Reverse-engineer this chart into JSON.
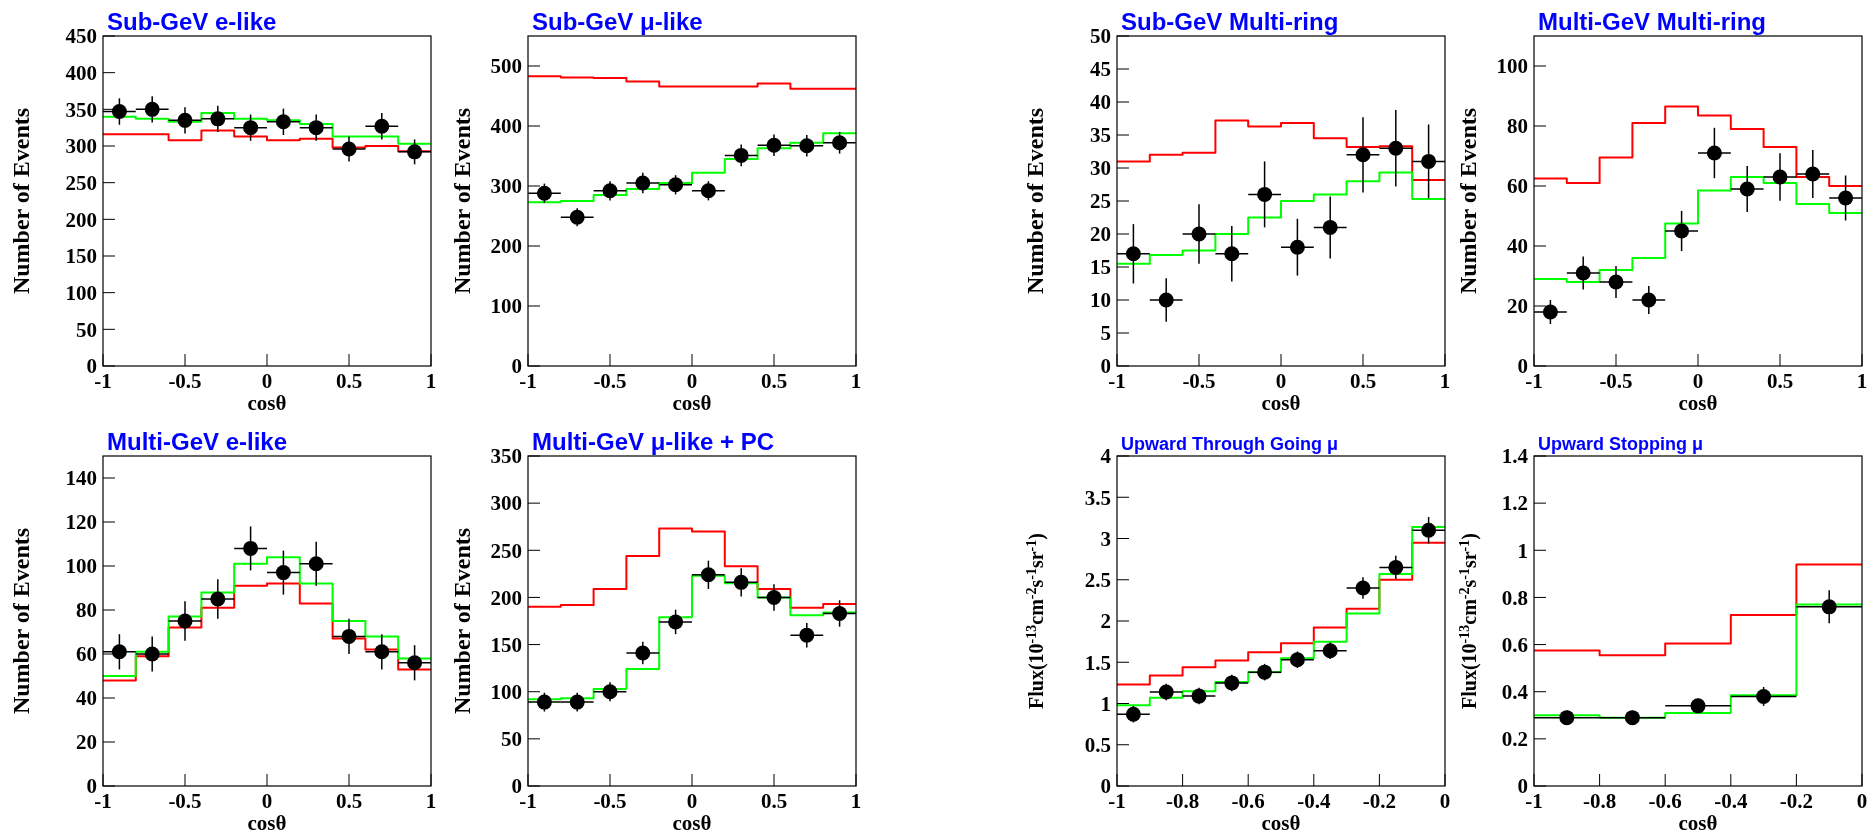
{
  "chart_data": [
    {
      "type": "step",
      "title": "Sub-GeV e-like",
      "xlabel": "cosθ",
      "ylabel": "Number of Events",
      "x": [
        -0.9,
        -0.7,
        -0.5,
        -0.3,
        -0.1,
        0.1,
        0.3,
        0.5,
        0.7,
        0.9
      ],
      "xlim": [
        -1,
        1
      ],
      "xticks": [
        -1,
        -0.5,
        0,
        0.5,
        1
      ],
      "ylim": [
        0,
        450
      ],
      "yticks": [
        0,
        50,
        100,
        150,
        200,
        250,
        300,
        350,
        400,
        450
      ],
      "grid": false,
      "series": [
        {
          "type": "step",
          "color": "#ff0000",
          "x": [
            -1,
            -0.8,
            -0.6,
            -0.4,
            -0.2,
            0,
            0.2,
            0.4,
            0.6,
            0.8,
            1
          ],
          "values": [
            316,
            316,
            308,
            321,
            313,
            308,
            310,
            298,
            300,
            293,
            293
          ]
        },
        {
          "type": "step",
          "color": "#00ff00",
          "x": [
            -1,
            -0.8,
            -0.6,
            -0.4,
            -0.2,
            0,
            0.2,
            0.4,
            0.6,
            0.8,
            1
          ],
          "values": [
            340,
            337,
            333,
            345,
            337,
            335,
            330,
            313,
            313,
            303,
            303
          ]
        },
        {
          "type": "scatter",
          "color": "#000000",
          "marker": "circle",
          "values": [
            347,
            350,
            335,
            337,
            325,
            333,
            325,
            296,
            327,
            292
          ],
          "errors": [
            18,
            18,
            18,
            18,
            18,
            18,
            18,
            17,
            18,
            17
          ],
          "xerrors": [
            0.1,
            0.1,
            0.1,
            0.1,
            0.1,
            0.1,
            0.1,
            0.1,
            0.1,
            0.1
          ]
        }
      ]
    },
    {
      "type": "step",
      "title": "Sub-GeV μ-like",
      "xlabel": "cosθ",
      "ylabel": "Number of Events",
      "x": [
        -0.9,
        -0.7,
        -0.5,
        -0.3,
        -0.1,
        0.1,
        0.3,
        0.5,
        0.7,
        0.9
      ],
      "xlim": [
        -1,
        1
      ],
      "xticks": [
        -1,
        -0.5,
        0,
        0.5,
        1
      ],
      "ylim": [
        0,
        550
      ],
      "yticks": [
        0,
        100,
        200,
        300,
        400,
        500
      ],
      "grid": false,
      "series": [
        {
          "type": "step",
          "color": "#ff0000",
          "x": [
            -1,
            -0.8,
            -0.6,
            -0.4,
            -0.2,
            0,
            0.2,
            0.4,
            0.6,
            0.8,
            1
          ],
          "values": [
            483,
            481,
            480,
            474,
            466,
            466,
            466,
            471,
            462,
            462,
            462
          ]
        },
        {
          "type": "step",
          "color": "#00ff00",
          "x": [
            -1,
            -0.8,
            -0.6,
            -0.4,
            -0.2,
            0,
            0.2,
            0.4,
            0.6,
            0.8,
            1
          ],
          "values": [
            273,
            275,
            285,
            295,
            305,
            322,
            345,
            363,
            372,
            388,
            388
          ]
        },
        {
          "type": "scatter",
          "color": "#000000",
          "marker": "circle",
          "values": [
            288,
            248,
            292,
            305,
            302,
            292,
            351,
            368,
            367,
            372
          ],
          "errors": [
            16,
            15,
            16,
            17,
            16,
            16,
            18,
            18,
            18,
            18
          ],
          "xerrors": [
            0.1,
            0.1,
            0.1,
            0.1,
            0.1,
            0.1,
            0.1,
            0.1,
            0.1,
            0.1
          ]
        }
      ]
    },
    {
      "type": "step",
      "title": "Sub-GeV Multi-ring",
      "xlabel": "cosθ",
      "ylabel": "Number of Events",
      "x": [
        -0.9,
        -0.7,
        -0.5,
        -0.3,
        -0.1,
        0.1,
        0.3,
        0.5,
        0.7,
        0.9
      ],
      "xlim": [
        -1,
        1
      ],
      "xticks": [
        -1,
        -0.5,
        0,
        0.5,
        1
      ],
      "ylim": [
        0,
        50
      ],
      "yticks": [
        0,
        5,
        10,
        15,
        20,
        25,
        30,
        35,
        40,
        45,
        50
      ],
      "grid": false,
      "series": [
        {
          "type": "step",
          "color": "#ff0000",
          "x": [
            -1,
            -0.8,
            -0.6,
            -0.4,
            -0.2,
            0,
            0.2,
            0.4,
            0.6,
            0.8,
            1
          ],
          "values": [
            31,
            32,
            32.3,
            37.2,
            36.3,
            36.8,
            34.5,
            33.2,
            33.3,
            28.2,
            28.2
          ]
        },
        {
          "type": "step",
          "color": "#00ff00",
          "x": [
            -1,
            -0.8,
            -0.6,
            -0.4,
            -0.2,
            0,
            0.2,
            0.4,
            0.6,
            0.8,
            1
          ],
          "values": [
            15.5,
            16.8,
            17.5,
            20,
            22.5,
            25,
            26,
            28,
            29.3,
            25.3,
            25.3
          ]
        },
        {
          "type": "scatter",
          "color": "#000000",
          "marker": "circle",
          "values": [
            17,
            10,
            20,
            17,
            26,
            18,
            21,
            32,
            33,
            31
          ],
          "errors": [
            4.5,
            3.3,
            4.5,
            4.2,
            5,
            4.3,
            4.7,
            5.7,
            5.8,
            5.6
          ],
          "xerrors": [
            0.1,
            0.1,
            0.1,
            0.1,
            0.1,
            0.1,
            0.1,
            0.1,
            0.1,
            0.1
          ]
        }
      ]
    },
    {
      "type": "step",
      "title": "Multi-GeV Multi-ring",
      "xlabel": "cosθ",
      "ylabel": "Number of Events",
      "x": [
        -0.9,
        -0.7,
        -0.5,
        -0.3,
        -0.1,
        0.1,
        0.3,
        0.5,
        0.7,
        0.9
      ],
      "xlim": [
        -1,
        1
      ],
      "xticks": [
        -1,
        -0.5,
        0,
        0.5,
        1
      ],
      "ylim": [
        0,
        110
      ],
      "yticks": [
        0,
        20,
        40,
        60,
        80,
        100
      ],
      "grid": false,
      "series": [
        {
          "type": "step",
          "color": "#ff0000",
          "x": [
            -1,
            -0.8,
            -0.6,
            -0.4,
            -0.2,
            0,
            0.2,
            0.4,
            0.6,
            0.8,
            1
          ],
          "values": [
            62.5,
            61,
            69.5,
            81,
            86.5,
            83.5,
            79,
            73,
            63,
            60,
            60
          ]
        },
        {
          "type": "step",
          "color": "#00ff00",
          "x": [
            -1,
            -0.8,
            -0.6,
            -0.4,
            -0.2,
            0,
            0.2,
            0.4,
            0.6,
            0.8,
            1
          ],
          "values": [
            29,
            28,
            32,
            36,
            47.5,
            58.5,
            63,
            61,
            54,
            51,
            51
          ]
        },
        {
          "type": "scatter",
          "color": "#000000",
          "marker": "circle",
          "values": [
            18,
            31,
            28,
            22,
            45,
            71,
            59,
            63,
            64,
            56
          ],
          "errors": [
            4,
            5.5,
            5.3,
            4.7,
            6.7,
            8.4,
            7.7,
            7.9,
            8,
            7.5
          ],
          "xerrors": [
            0.1,
            0.1,
            0.1,
            0.1,
            0.1,
            0.1,
            0.1,
            0.1,
            0.1,
            0.1
          ]
        }
      ]
    },
    {
      "type": "step",
      "title": "Multi-GeV e-like",
      "xlabel": "cosθ",
      "ylabel": "Number of Events",
      "x": [
        -0.9,
        -0.7,
        -0.5,
        -0.3,
        -0.1,
        0.1,
        0.3,
        0.5,
        0.7,
        0.9
      ],
      "xlim": [
        -1,
        1
      ],
      "xticks": [
        -1,
        -0.5,
        0,
        0.5,
        1
      ],
      "ylim": [
        0,
        150
      ],
      "yticks": [
        0,
        20,
        40,
        60,
        80,
        100,
        120,
        140
      ],
      "grid": false,
      "series": [
        {
          "type": "step",
          "color": "#ff0000",
          "x": [
            -1,
            -0.8,
            -0.6,
            -0.4,
            -0.2,
            0,
            0.2,
            0.4,
            0.6,
            0.8,
            1
          ],
          "values": [
            48,
            59,
            72,
            81,
            91,
            92,
            83,
            67,
            62,
            53,
            53
          ]
        },
        {
          "type": "step",
          "color": "#00ff00",
          "x": [
            -1,
            -0.8,
            -0.6,
            -0.4,
            -0.2,
            0,
            0.2,
            0.4,
            0.6,
            0.8,
            1
          ],
          "values": [
            50,
            61,
            77,
            88,
            101,
            104,
            92,
            75,
            68,
            58,
            58
          ]
        },
        {
          "type": "scatter",
          "color": "#000000",
          "marker": "circle",
          "values": [
            61,
            60,
            75,
            85,
            108,
            97,
            101,
            68,
            61,
            56
          ],
          "errors": [
            8,
            8,
            9,
            9,
            10,
            10,
            10,
            8,
            8,
            8
          ],
          "xerrors": [
            0.1,
            0.1,
            0.1,
            0.1,
            0.1,
            0.1,
            0.1,
            0.1,
            0.1,
            0.1
          ]
        }
      ]
    },
    {
      "type": "step",
      "title": "Multi-GeV μ-like + PC",
      "xlabel": "cosθ",
      "ylabel": "Number of Events",
      "x": [
        -0.9,
        -0.7,
        -0.5,
        -0.3,
        -0.1,
        0.1,
        0.3,
        0.5,
        0.7,
        0.9
      ],
      "xlim": [
        -1,
        1
      ],
      "xticks": [
        -1,
        -0.5,
        0,
        0.5,
        1
      ],
      "ylim": [
        0,
        350
      ],
      "yticks": [
        0,
        50,
        100,
        150,
        200,
        250,
        300,
        350
      ],
      "grid": false,
      "series": [
        {
          "type": "step",
          "color": "#ff0000",
          "x": [
            -1,
            -0.8,
            -0.6,
            -0.4,
            -0.2,
            0,
            0.2,
            0.4,
            0.6,
            0.8,
            1
          ],
          "values": [
            190,
            192,
            209,
            244,
            273,
            270,
            233,
            209,
            189,
            193,
            193
          ]
        },
        {
          "type": "step",
          "color": "#00ff00",
          "x": [
            -1,
            -0.8,
            -0.6,
            -0.4,
            -0.2,
            0,
            0.2,
            0.4,
            0.6,
            0.8,
            1
          ],
          "values": [
            92,
            93,
            103,
            124,
            179,
            223,
            215,
            200,
            181,
            184,
            184
          ]
        },
        {
          "type": "scatter",
          "color": "#000000",
          "marker": "circle",
          "values": [
            89,
            89,
            100,
            141,
            174,
            224,
            216,
            200,
            160,
            183
          ],
          "errors": [
            10,
            10,
            10,
            12,
            13,
            15,
            15,
            14,
            13,
            14
          ],
          "xerrors": [
            0.1,
            0.1,
            0.1,
            0.1,
            0.1,
            0.1,
            0.1,
            0.1,
            0.1,
            0.1
          ]
        }
      ]
    },
    {
      "type": "step",
      "title": "Upward Through Going μ",
      "xlabel": "cosθ",
      "ylabel": "Flux(10$^{-13}$cm$^{-2}$s$^{-1}$sr$^{-1}$)",
      "x": [
        -0.95,
        -0.85,
        -0.75,
        -0.65,
        -0.55,
        -0.45,
        -0.35,
        -0.25,
        -0.15,
        -0.05
      ],
      "xlim": [
        -1,
        0
      ],
      "xticks": [
        -1,
        -0.8,
        -0.6,
        -0.4,
        -0.2,
        0
      ],
      "ylim": [
        0,
        4
      ],
      "yticks": [
        0,
        0.5,
        1,
        1.5,
        2,
        2.5,
        3,
        3.5,
        4
      ],
      "grid": false,
      "series": [
        {
          "type": "step",
          "color": "#ff0000",
          "x": [
            -1,
            -0.9,
            -0.8,
            -0.7,
            -0.6,
            -0.5,
            -0.4,
            -0.3,
            -0.2,
            -0.1,
            0
          ],
          "values": [
            1.23,
            1.34,
            1.44,
            1.52,
            1.62,
            1.73,
            1.92,
            2.15,
            2.5,
            2.95,
            2.95
          ]
        },
        {
          "type": "step",
          "color": "#00ff00",
          "x": [
            -1,
            -0.9,
            -0.8,
            -0.7,
            -0.6,
            -0.5,
            -0.4,
            -0.3,
            -0.2,
            -0.1,
            0
          ],
          "values": [
            0.98,
            1.07,
            1.15,
            1.26,
            1.38,
            1.55,
            1.75,
            2.09,
            2.57,
            3.14,
            3.14
          ]
        },
        {
          "type": "scatter",
          "color": "#000000",
          "marker": "circle",
          "values": [
            0.87,
            1.14,
            1.09,
            1.25,
            1.38,
            1.53,
            1.64,
            2.4,
            2.65,
            3.1
          ],
          "errors": [
            0.1,
            0.1,
            0.1,
            0.1,
            0.1,
            0.1,
            0.1,
            0.13,
            0.14,
            0.16
          ],
          "xerrors": [
            0.05,
            0.05,
            0.05,
            0.05,
            0.05,
            0.05,
            0.05,
            0.05,
            0.05,
            0.05
          ]
        }
      ]
    },
    {
      "type": "step",
      "title": "Upward Stopping μ",
      "xlabel": "cosθ",
      "ylabel": "Flux(10$^{-13}$cm$^{-2}$s$^{-1}$sr$^{-1}$)",
      "x": [
        -0.9,
        -0.7,
        -0.5,
        -0.3,
        -0.1
      ],
      "xlim": [
        -1,
        0
      ],
      "xticks": [
        -1,
        -0.8,
        -0.6,
        -0.4,
        -0.2,
        0
      ],
      "ylim": [
        0,
        1.4
      ],
      "yticks": [
        0,
        0.2,
        0.4,
        0.6,
        0.8,
        1,
        1.2,
        1.4
      ],
      "grid": false,
      "series": [
        {
          "type": "step",
          "color": "#ff0000",
          "x": [
            -1,
            -0.8,
            -0.6,
            -0.4,
            -0.2,
            0
          ],
          "values": [
            0.575,
            0.555,
            0.605,
            0.725,
            0.94,
            0.94
          ]
        },
        {
          "type": "step",
          "color": "#00ff00",
          "x": [
            -1,
            -0.8,
            -0.6,
            -0.4,
            -0.2,
            0
          ],
          "values": [
            0.3,
            0.29,
            0.31,
            0.385,
            0.77,
            0.77
          ]
        },
        {
          "type": "scatter",
          "color": "#000000",
          "marker": "circle",
          "values": [
            0.29,
            0.29,
            0.34,
            0.38,
            0.76
          ],
          "errors": [
            0.03,
            0.03,
            0.03,
            0.04,
            0.07
          ],
          "xerrors": [
            0.1,
            0.1,
            0.1,
            0.1,
            0.1
          ]
        }
      ]
    }
  ]
}
